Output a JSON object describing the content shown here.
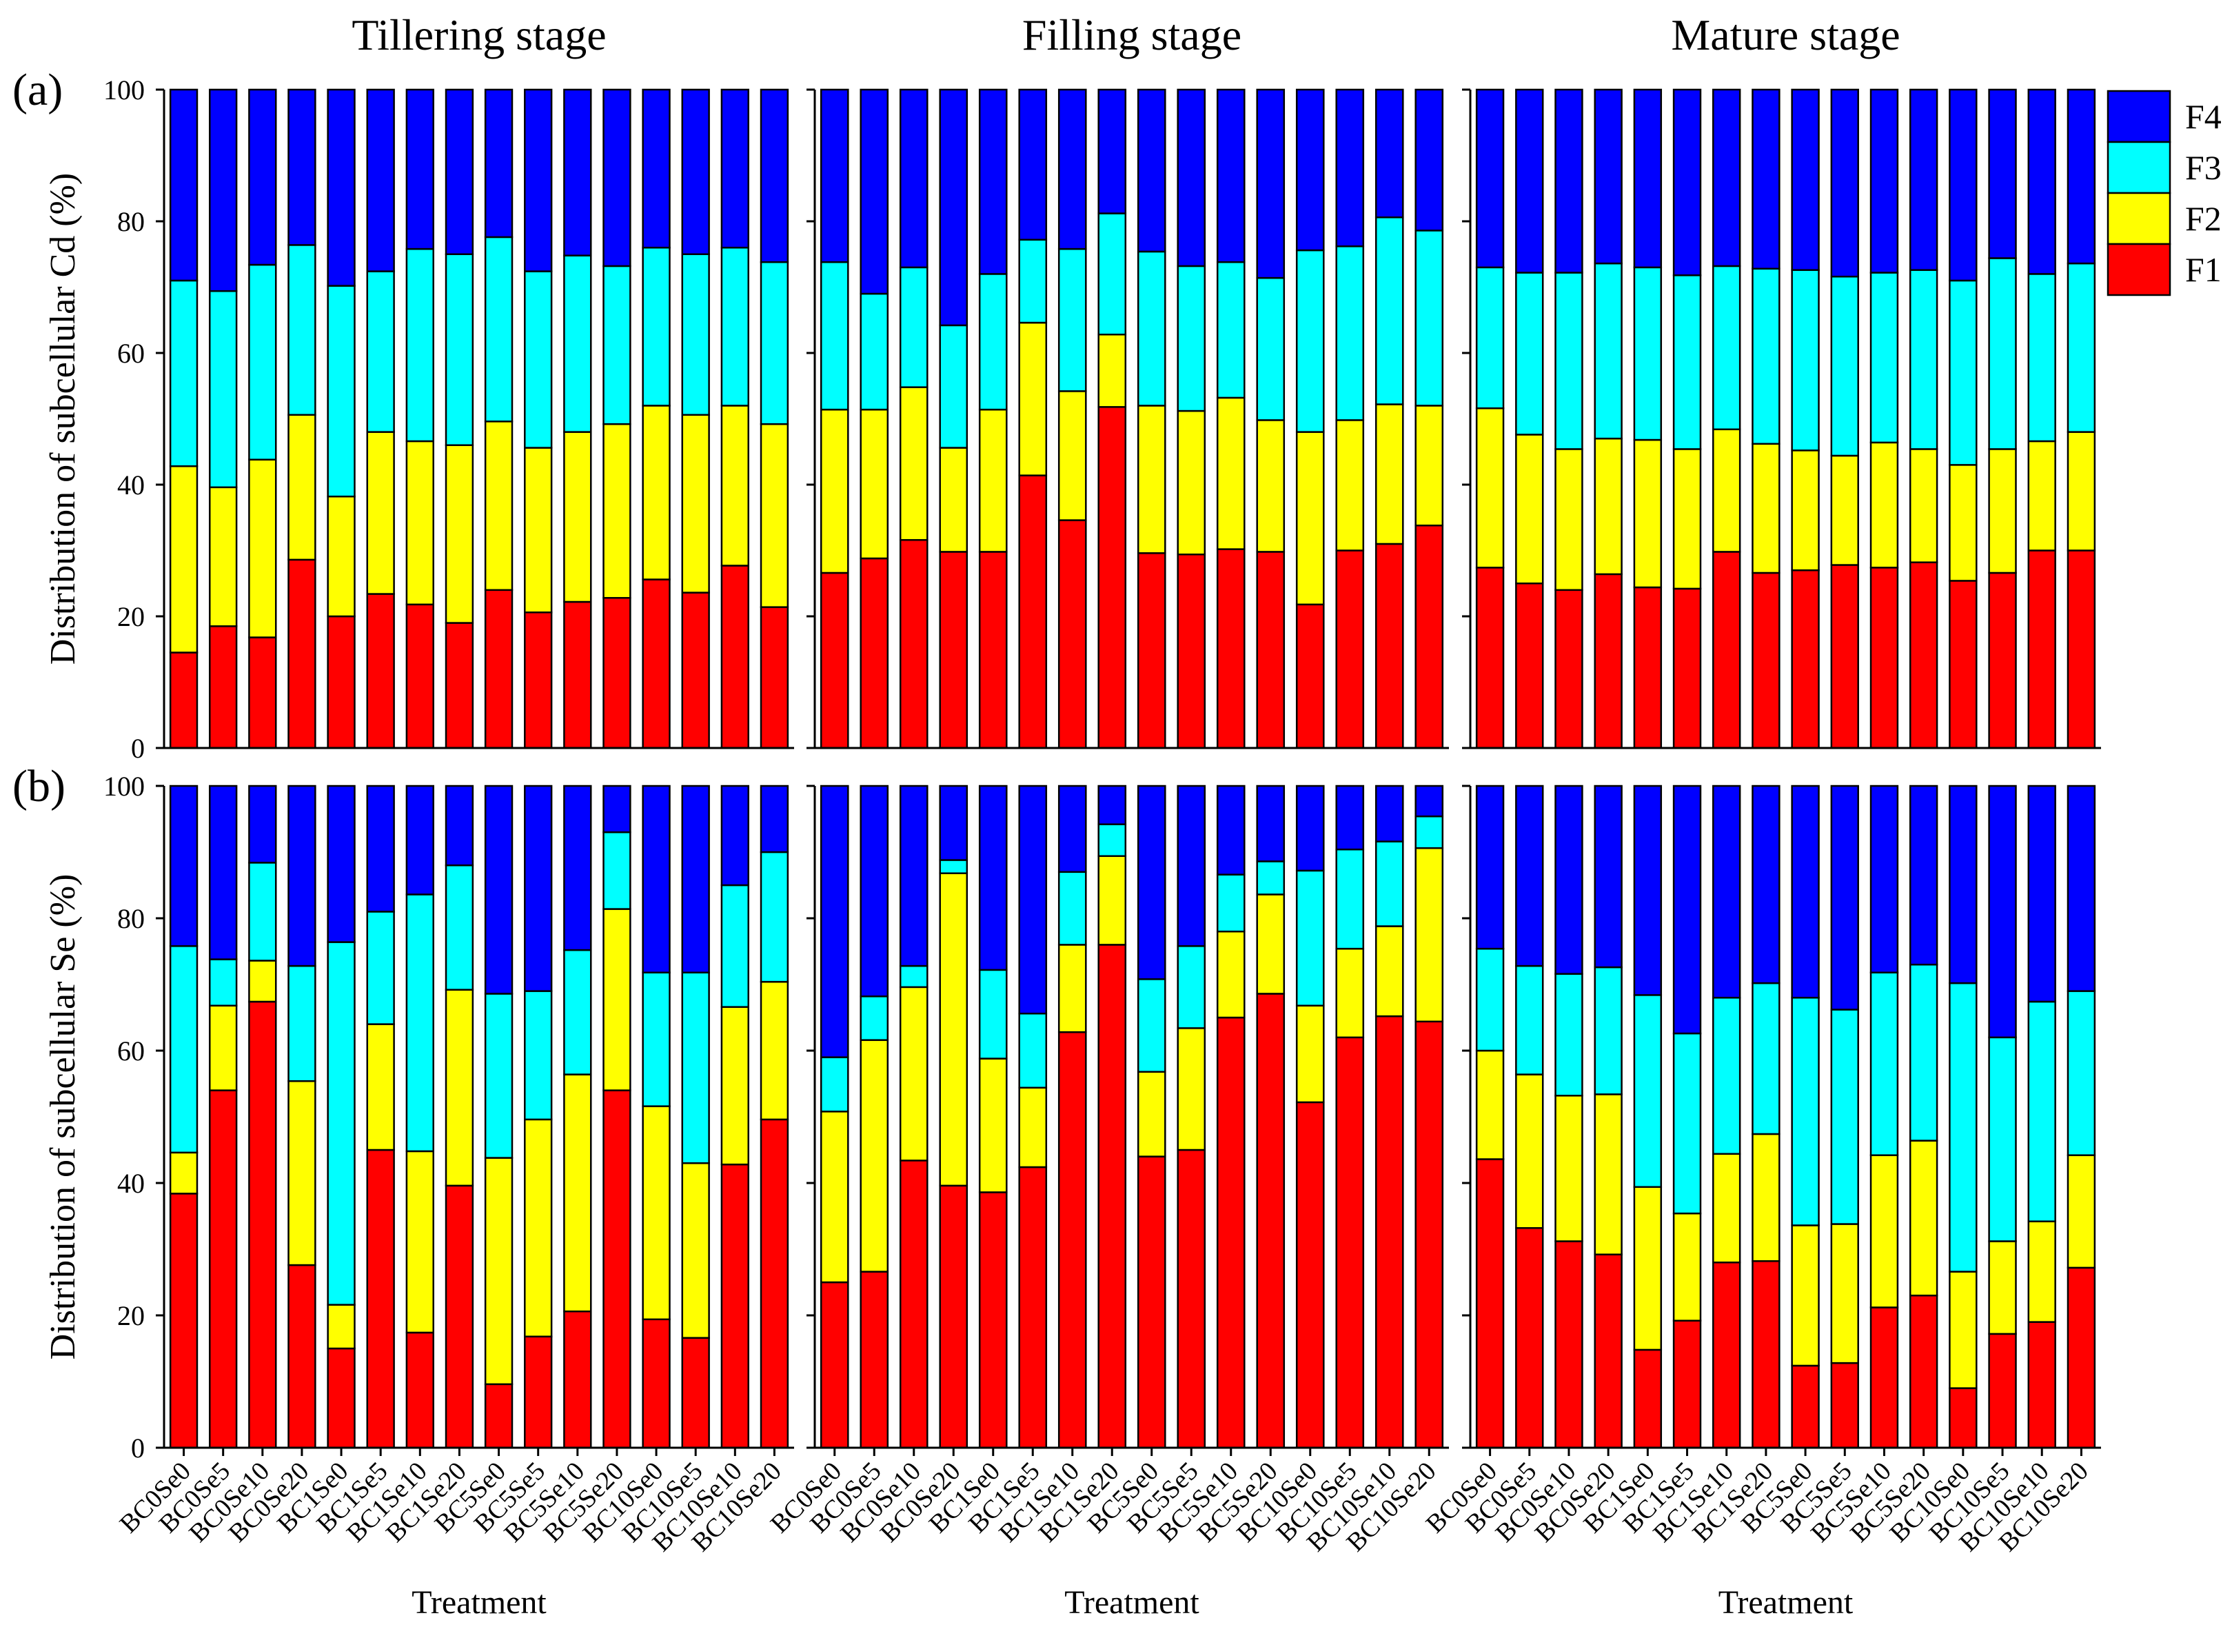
{
  "chart_data": {
    "type": "bar",
    "stacked": true,
    "percent": true,
    "stages": [
      "Tillering stage",
      "Filling stage",
      "Mature stage"
    ],
    "categories": [
      "BC0Se0",
      "BC0Se5",
      "BC0Se10",
      "BC0Se20",
      "BC1Se0",
      "BC1Se5",
      "BC1Se10",
      "BC1Se20",
      "BC5Se0",
      "BC5Se5",
      "BC5Se10",
      "BC5Se20",
      "BC10Se0",
      "BC10Se5",
      "BC10Se10",
      "BC10Se20"
    ],
    "xlabel": "Treatment",
    "ylim": [
      0,
      100
    ],
    "yticks": [
      "0",
      "20",
      "40",
      "60",
      "80",
      "100"
    ],
    "series_names": [
      "F1",
      "F2",
      "F3",
      "F4"
    ],
    "legend": [
      "F4",
      "F3",
      "F2",
      "F1"
    ],
    "colors": {
      "F1": "#ff0000",
      "F2": "#ffff00",
      "F3": "#00ffff",
      "F4": "#0000ff"
    },
    "rows": [
      {
        "label": "(a)",
        "ylabel": "Distribution of subcellular Cd (%)",
        "panels": [
          {
            "stage": "Tillering stage",
            "cumulative": [
              [
                14.5,
                18.5,
                16.8,
                28.6,
                20.0,
                23.4,
                21.8,
                19.0,
                24.0,
                20.6,
                22.2,
                22.8,
                25.6,
                23.6,
                27.7,
                21.4
              ],
              [
                42.8,
                39.6,
                43.8,
                50.6,
                38.2,
                48.0,
                46.6,
                46.0,
                49.6,
                45.6,
                48.0,
                49.2,
                52.0,
                50.6,
                52.0,
                49.2
              ],
              [
                71.0,
                69.4,
                73.4,
                76.4,
                70.2,
                72.4,
                75.8,
                75.0,
                77.6,
                72.4,
                74.8,
                73.2,
                76.0,
                75.0,
                76.0,
                73.8
              ]
            ]
          },
          {
            "stage": "Filling stage",
            "cumulative": [
              [
                26.6,
                28.8,
                31.6,
                29.8,
                29.8,
                41.4,
                34.6,
                51.8,
                29.6,
                29.4,
                30.2,
                29.8,
                21.8,
                30.0,
                31.0,
                33.8
              ],
              [
                51.4,
                51.4,
                54.8,
                45.6,
                51.4,
                64.6,
                54.2,
                62.8,
                52.0,
                51.2,
                53.2,
                49.8,
                48.0,
                49.8,
                52.2,
                52.0
              ],
              [
                73.8,
                69.0,
                73.0,
                64.2,
                72.0,
                77.2,
                75.8,
                81.2,
                75.4,
                73.2,
                73.8,
                71.4,
                75.6,
                76.2,
                80.6,
                78.6
              ]
            ]
          },
          {
            "stage": "Mature stage",
            "cumulative": [
              [
                27.4,
                25.0,
                24.0,
                26.4,
                24.4,
                24.2,
                29.8,
                26.6,
                27.0,
                27.8,
                27.4,
                28.2,
                25.4,
                26.6,
                30.0,
                30.0
              ],
              [
                51.6,
                47.6,
                45.4,
                47.0,
                46.8,
                45.4,
                48.4,
                46.2,
                45.2,
                44.4,
                46.4,
                45.4,
                43.0,
                45.4,
                46.6,
                48.0
              ],
              [
                73.0,
                72.2,
                72.2,
                73.6,
                73.0,
                71.8,
                73.2,
                72.8,
                72.6,
                71.6,
                72.2,
                72.6,
                71.0,
                74.4,
                72.0,
                73.6
              ]
            ]
          }
        ]
      },
      {
        "label": "(b)",
        "ylabel": "Distribution of subcellular Se (%)",
        "panels": [
          {
            "stage": "Tillering stage",
            "cumulative": [
              [
                38.4,
                54.0,
                67.4,
                27.6,
                15.0,
                45.0,
                17.4,
                39.6,
                9.6,
                16.8,
                20.6,
                54.0,
                19.4,
                16.6,
                42.8,
                49.6
              ],
              [
                44.6,
                66.8,
                73.6,
                55.4,
                21.6,
                64.0,
                44.8,
                69.2,
                43.8,
                49.6,
                56.4,
                81.4,
                51.6,
                43.0,
                66.6,
                70.4
              ],
              [
                75.8,
                73.8,
                88.4,
                72.8,
                76.4,
                81.0,
                83.6,
                88.0,
                68.6,
                69.0,
                75.2,
                93.0,
                71.8,
                71.8,
                85.0,
                90.0
              ]
            ]
          },
          {
            "stage": "Filling stage",
            "cumulative": [
              [
                25.0,
                26.6,
                43.4,
                39.6,
                38.6,
                42.4,
                62.8,
                76.0,
                44.0,
                45.0,
                65.0,
                68.6,
                52.2,
                62.0,
                65.2,
                64.4
              ],
              [
                50.8,
                61.6,
                69.6,
                86.8,
                58.8,
                54.4,
                76.0,
                89.4,
                56.8,
                63.4,
                78.0,
                83.6,
                66.8,
                75.4,
                78.8,
                90.6
              ],
              [
                59.0,
                68.2,
                72.8,
                88.8,
                72.2,
                65.6,
                87.0,
                94.2,
                70.8,
                75.8,
                86.6,
                88.6,
                87.2,
                90.4,
                91.6,
                95.4
              ]
            ]
          },
          {
            "stage": "Mature stage",
            "cumulative": [
              [
                43.6,
                33.2,
                31.2,
                29.2,
                14.8,
                19.2,
                28.0,
                28.2,
                12.4,
                12.8,
                21.2,
                23.0,
                9.0,
                17.2,
                19.0,
                27.2
              ],
              [
                60.0,
                56.4,
                53.2,
                53.4,
                39.4,
                35.4,
                44.4,
                47.4,
                33.6,
                33.8,
                44.2,
                46.4,
                26.6,
                31.2,
                34.2,
                44.2
              ],
              [
                75.4,
                72.8,
                71.6,
                72.6,
                68.4,
                62.6,
                68.0,
                70.2,
                68.0,
                66.2,
                71.8,
                73.0,
                70.2,
                62.0,
                67.4,
                69.0
              ]
            ]
          }
        ]
      }
    ]
  }
}
